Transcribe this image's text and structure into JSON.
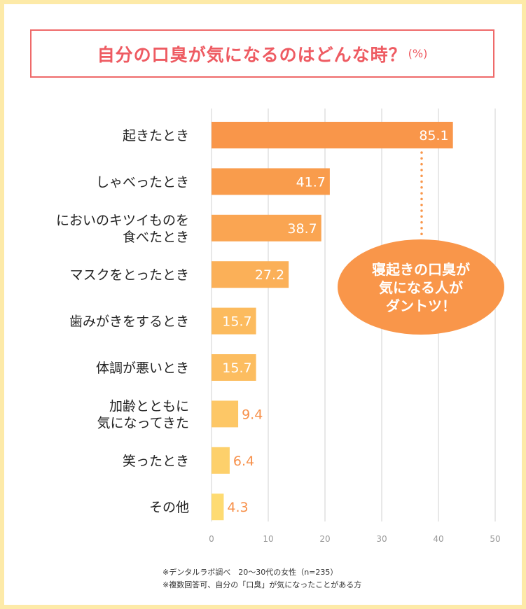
{
  "title": "自分の口臭が気になるのはどんな時？",
  "title_unit": "(%)",
  "chart_data": {
    "type": "bar",
    "orientation": "horizontal",
    "categories": [
      [
        "起きたとき"
      ],
      [
        "しゃべったとき"
      ],
      [
        "においのキツイものを",
        "食べたとき"
      ],
      [
        "マスクをとったとき"
      ],
      [
        "歯みがきをするとき"
      ],
      [
        "体調が悪いとき"
      ],
      [
        "加齢とともに",
        "気になってきた"
      ],
      [
        "笑ったとき"
      ],
      [
        "その他"
      ]
    ],
    "values": [
      85.1,
      41.7,
      38.7,
      27.2,
      15.7,
      15.7,
      9.4,
      6.4,
      4.3
    ],
    "value_labels": [
      "85.1",
      "41.7",
      "38.7",
      "27.2",
      "15.7",
      "15.7",
      "9.4",
      "6.4",
      "4.3"
    ],
    "x_ticks": [
      "0",
      "10",
      "20",
      "30",
      "40",
      "50"
    ],
    "grid": true,
    "bar_colors": [
      "#f9964a",
      "#f99c4c",
      "#faa552",
      "#fbb058",
      "#fcbb5e",
      "#fcbd60",
      "#fdc766",
      "#fdd06b",
      "#fedb72"
    ],
    "label_color_inside": "#ffffff",
    "label_color_outside": "#f7904a"
  },
  "callout": {
    "lines": [
      "寝起きの口臭が",
      "気になる人が",
      "ダントツ！"
    ],
    "color": "#f9964a"
  },
  "footnotes": [
    "※デンタルラボ調べ　20〜30代の女性（n=235）",
    "※複数回答可、自分の「口臭」が気になったことがある方"
  ]
}
